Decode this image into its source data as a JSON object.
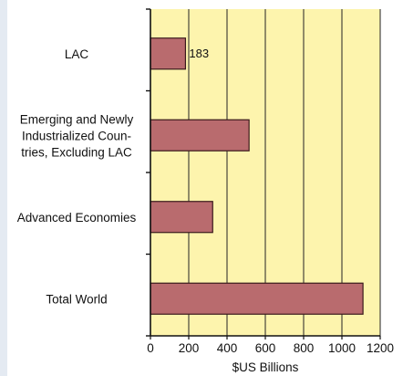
{
  "chart_data": {
    "type": "bar",
    "orientation": "horizontal",
    "categories": [
      "LAC",
      "Emerging and Newly Industrialized Countries, Excluding LAC",
      "Advanced Economies",
      "Total World"
    ],
    "category_label_lines": [
      [
        "LAC"
      ],
      [
        "Emerging and Newly",
        "Industrialized Coun-",
        "tries, Excluding LAC"
      ],
      [
        "Advanced Economies"
      ],
      [
        "Total World"
      ]
    ],
    "values": [
      183,
      515,
      325,
      1110
    ],
    "data_labels": [
      "183",
      "",
      "",
      ""
    ],
    "xlabel": "$US Billions",
    "xlim": [
      0,
      1200
    ],
    "xticks": [
      0,
      200,
      400,
      600,
      800,
      1000,
      1200
    ],
    "grid": "vertical",
    "colors": {
      "plot_background": "#fdf4ad",
      "bar_fill": "#b96b6e",
      "bar_stroke": "#3a1a1c",
      "grid": "#222222",
      "side_strip": "#e4eaf2"
    }
  }
}
